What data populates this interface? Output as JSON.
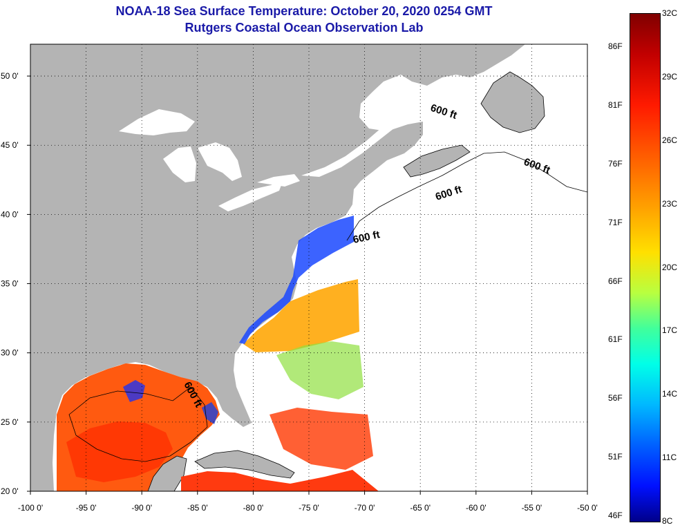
{
  "title": "NOAA-18 Sea Surface Temperature:  October 20, 2020 0254 GMT",
  "subtitle": "Rutgers Coastal Ocean Observation Lab",
  "map": {
    "lon_range": [
      -100,
      -50
    ],
    "lat_range": [
      20,
      52.3
    ],
    "x_ticks": [
      "-100 0'",
      "-95 0'",
      "-90 0'",
      "-85 0'",
      "-80 0'",
      "-75 0'",
      "-70 0'",
      "-65 0'",
      "-60 0'",
      "-55 0'",
      "-50 0'"
    ],
    "x_tick_values": [
      -100,
      -95,
      -90,
      -85,
      -80,
      -75,
      -70,
      -65,
      -60,
      -55,
      -50
    ],
    "y_ticks": [
      "20 0'",
      "25 0'",
      "30 0'",
      "35 0'",
      "40 0'",
      "45 0'",
      "50 0'"
    ],
    "y_tick_values": [
      20,
      25,
      30,
      35,
      40,
      45,
      50
    ],
    "contour_labels": [
      "600 ft",
      "600 ft",
      "600 ft",
      "600 ft",
      "600 ft"
    ],
    "colors": {
      "land": "#b4b4b4",
      "no_data": "#ffffff",
      "title": "#1a1aa8"
    }
  },
  "colorbar": {
    "celsius_labels": [
      "32C",
      "29C",
      "26C",
      "23C",
      "20C",
      "17C",
      "14C",
      "11C",
      "8C"
    ],
    "fahrenheit_labels": [
      "86F",
      "81F",
      "76F",
      "71F",
      "66F",
      "61F",
      "56F",
      "51F",
      "46F"
    ],
    "range_c": [
      8,
      32
    ]
  }
}
